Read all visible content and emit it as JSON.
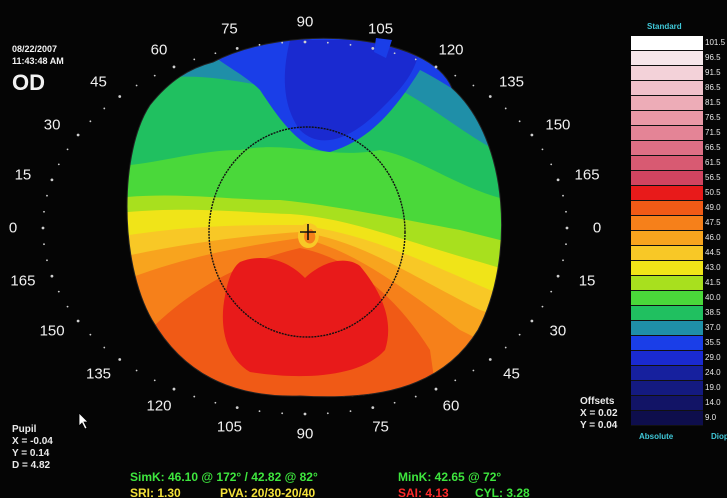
{
  "header": {
    "date": "08/22/2007",
    "time": "11:43:48 AM",
    "eye": "OD"
  },
  "degree_labels": [
    "90",
    "105",
    "120",
    "135",
    "150",
    "165",
    "0",
    "15",
    "30",
    "45",
    "60",
    "75",
    "90",
    "105",
    "120",
    "135",
    "150",
    "165",
    "0",
    "15",
    "30",
    "45",
    "60",
    "75"
  ],
  "pupil": {
    "title": "Pupil",
    "x": "X = -0.04",
    "y": "Y = 0.14",
    "d": "D = 4.82"
  },
  "offsets": {
    "title": "Offsets",
    "x": "X = 0.02",
    "y": "Y = 0.04"
  },
  "legend": {
    "title": "Standard",
    "footer_left": "Absolute",
    "footer_right": "Diop",
    "rows": [
      {
        "value": "101.5",
        "color": "#ffffff"
      },
      {
        "value": "96.5",
        "color": "#f6e6ea"
      },
      {
        "value": "91.5",
        "color": "#f3d2d9"
      },
      {
        "value": "86.5",
        "color": "#f0c0ca"
      },
      {
        "value": "81.5",
        "color": "#edacb7"
      },
      {
        "value": "76.5",
        "color": "#e998a6"
      },
      {
        "value": "71.5",
        "color": "#e48496"
      },
      {
        "value": "66.5",
        "color": "#de6f85"
      },
      {
        "value": "61.5",
        "color": "#d85a72"
      },
      {
        "value": "56.5",
        "color": "#d04460"
      },
      {
        "value": "50.5",
        "color": "#e81a1a"
      },
      {
        "value": "49.0",
        "color": "#f05a16"
      },
      {
        "value": "47.5",
        "color": "#f6801a"
      },
      {
        "value": "46.0",
        "color": "#f8a41e"
      },
      {
        "value": "44.5",
        "color": "#f8c826"
      },
      {
        "value": "43.0",
        "color": "#f0e418"
      },
      {
        "value": "41.5",
        "color": "#a8e01e"
      },
      {
        "value": "40.0",
        "color": "#4ad83a"
      },
      {
        "value": "38.5",
        "color": "#20c060"
      },
      {
        "value": "37.0",
        "color": "#1f8fa8"
      },
      {
        "value": "35.5",
        "color": "#1a3ee8"
      },
      {
        "value": "29.0",
        "color": "#1a2ad0"
      },
      {
        "value": "24.0",
        "color": "#16209e"
      },
      {
        "value": "19.0",
        "color": "#141a80"
      },
      {
        "value": "14.0",
        "color": "#121466"
      },
      {
        "value": "9.0",
        "color": "#0e0e4c"
      }
    ]
  },
  "stats": {
    "simk": "SimK: 46.10 @ 172° / 42.82 @ 82°",
    "mink": "MinK: 42.65 @ 72°",
    "sri": "SRI: 1.30",
    "pva": "PVA: 20/30-20/40",
    "sai": "SAI: 4.13",
    "cyl": "CYL: 3.28",
    "colors": {
      "green": "#3ee63e",
      "yellow": "#f4e23a",
      "red": "#ff2a2a"
    }
  }
}
